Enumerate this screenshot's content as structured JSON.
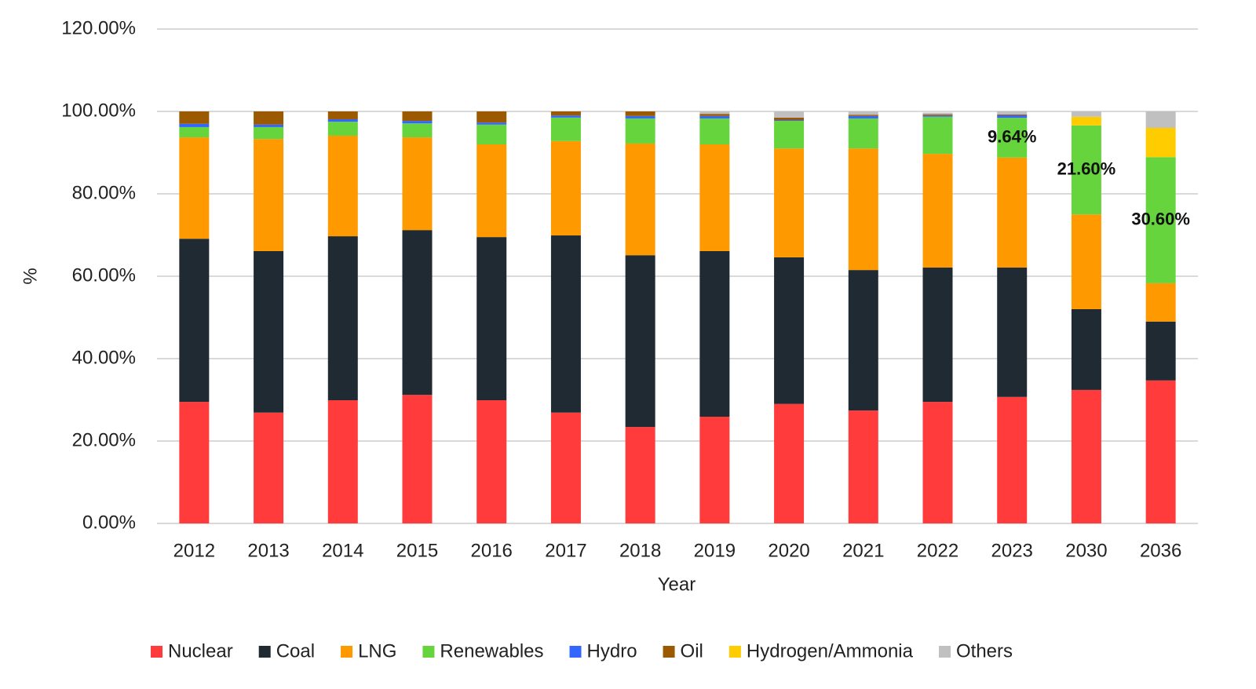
{
  "chart_data": {
    "type": "stacked_bar",
    "x_label": "Year",
    "y_label": "%",
    "categories": [
      "2012",
      "2013",
      "2014",
      "2015",
      "2016",
      "2017",
      "2018",
      "2019",
      "2020",
      "2021",
      "2022",
      "2023",
      "2030",
      "2036"
    ],
    "series": [
      {
        "name": "Nuclear",
        "color": "#ff3b3b",
        "values": [
          29.5,
          26.9,
          29.9,
          31.2,
          29.9,
          26.9,
          23.4,
          25.9,
          29.0,
          27.4,
          29.5,
          30.7,
          32.4,
          34.7
        ]
      },
      {
        "name": "Coal",
        "color": "#1f2a33",
        "values": [
          39.6,
          39.2,
          39.8,
          40.0,
          39.6,
          43.0,
          41.7,
          40.2,
          35.6,
          34.1,
          32.6,
          31.4,
          19.6,
          14.3
        ]
      },
      {
        "name": "LNG",
        "color": "#ff9900",
        "values": [
          24.6,
          27.2,
          24.4,
          22.5,
          22.5,
          22.9,
          27.1,
          25.9,
          26.4,
          29.5,
          27.6,
          26.7,
          23.0,
          9.3
        ]
      },
      {
        "name": "Renewables",
        "color": "#66d43c",
        "values": [
          2.5,
          2.9,
          3.4,
          3.4,
          4.8,
          5.7,
          6.1,
          6.3,
          6.7,
          7.3,
          9.0,
          9.64,
          21.6,
          30.6
        ],
        "value_labels": [
          null,
          null,
          null,
          null,
          null,
          null,
          null,
          null,
          null,
          null,
          null,
          "9.64%",
          "21.60%",
          "30.60%"
        ]
      },
      {
        "name": "Hydro",
        "color": "#3366ff",
        "values": [
          0.8,
          0.6,
          0.6,
          0.6,
          0.5,
          0.5,
          0.6,
          0.6,
          0.2,
          0.6,
          0.3,
          0.6,
          0,
          0
        ]
      },
      {
        "name": "Oil",
        "color": "#9c5a00",
        "values": [
          3.0,
          3.2,
          1.9,
          2.3,
          2.7,
          1.0,
          1.1,
          0.5,
          0.6,
          0.3,
          0.3,
          0.2,
          0,
          0
        ]
      },
      {
        "name": "Hydrogen/Ammonia",
        "color": "#ffcc00",
        "values": [
          0,
          0,
          0,
          0,
          0,
          0,
          0,
          0,
          0,
          0,
          0,
          0,
          2.1,
          7.1
        ]
      },
      {
        "name": "Others",
        "color": "#c0c0c0",
        "values": [
          0,
          0,
          0,
          0,
          0,
          0,
          0,
          0.6,
          1.5,
          0.8,
          0.4,
          0.8,
          1.3,
          4.0
        ]
      }
    ],
    "ylim": [
      0,
      120
    ],
    "yticks": [
      {
        "value": 0,
        "label": "0.00%"
      },
      {
        "value": 20,
        "label": "20.00%"
      },
      {
        "value": 40,
        "label": "40.00%"
      },
      {
        "value": 60,
        "label": "60.00%"
      },
      {
        "value": 80,
        "label": "80.00%"
      },
      {
        "value": 100,
        "label": "100.00%"
      },
      {
        "value": 120,
        "label": "120.00%"
      }
    ],
    "grid": true,
    "legend": "bottom"
  }
}
